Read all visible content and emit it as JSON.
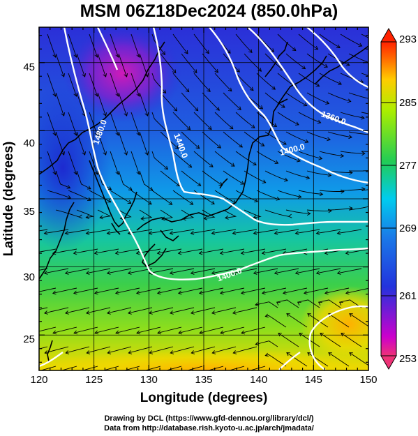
{
  "title": "MSM 06Z18Dec2024 (850.0hPa)",
  "credits": {
    "line1": "Drawing by DCL (https://www.gfd-dennou.org/library/dcl/)",
    "line2": "Data from http://database.rish.kyoto-u.ac.jp/arch/jmadata/"
  },
  "map": {
    "xlabel": "Longitude (degrees)",
    "ylabel": "Latitude  (degrees)",
    "xlim": [
      120,
      150
    ],
    "ylim": [
      22.4,
      47.6
    ],
    "xticks": [
      "120",
      "125",
      "130",
      "135",
      "140",
      "145",
      "150"
    ],
    "yticks": [
      "25",
      "30",
      "35",
      "40",
      "45"
    ],
    "field": "temperature",
    "contour_labels": [
      "1480.0",
      "1440.0",
      "1400.0",
      "1360.0",
      "1400.0"
    ]
  },
  "colorbar": {
    "ticks": [
      "293",
      "285",
      "277",
      "269",
      "261",
      "253"
    ],
    "min": 253,
    "max": 293,
    "colors": [
      "#ee3377",
      "#cc00cc",
      "#2233dd",
      "#00ccee",
      "#22cc55",
      "#aaee00",
      "#ffcc00",
      "#ff6600",
      "#ff2200"
    ]
  }
}
